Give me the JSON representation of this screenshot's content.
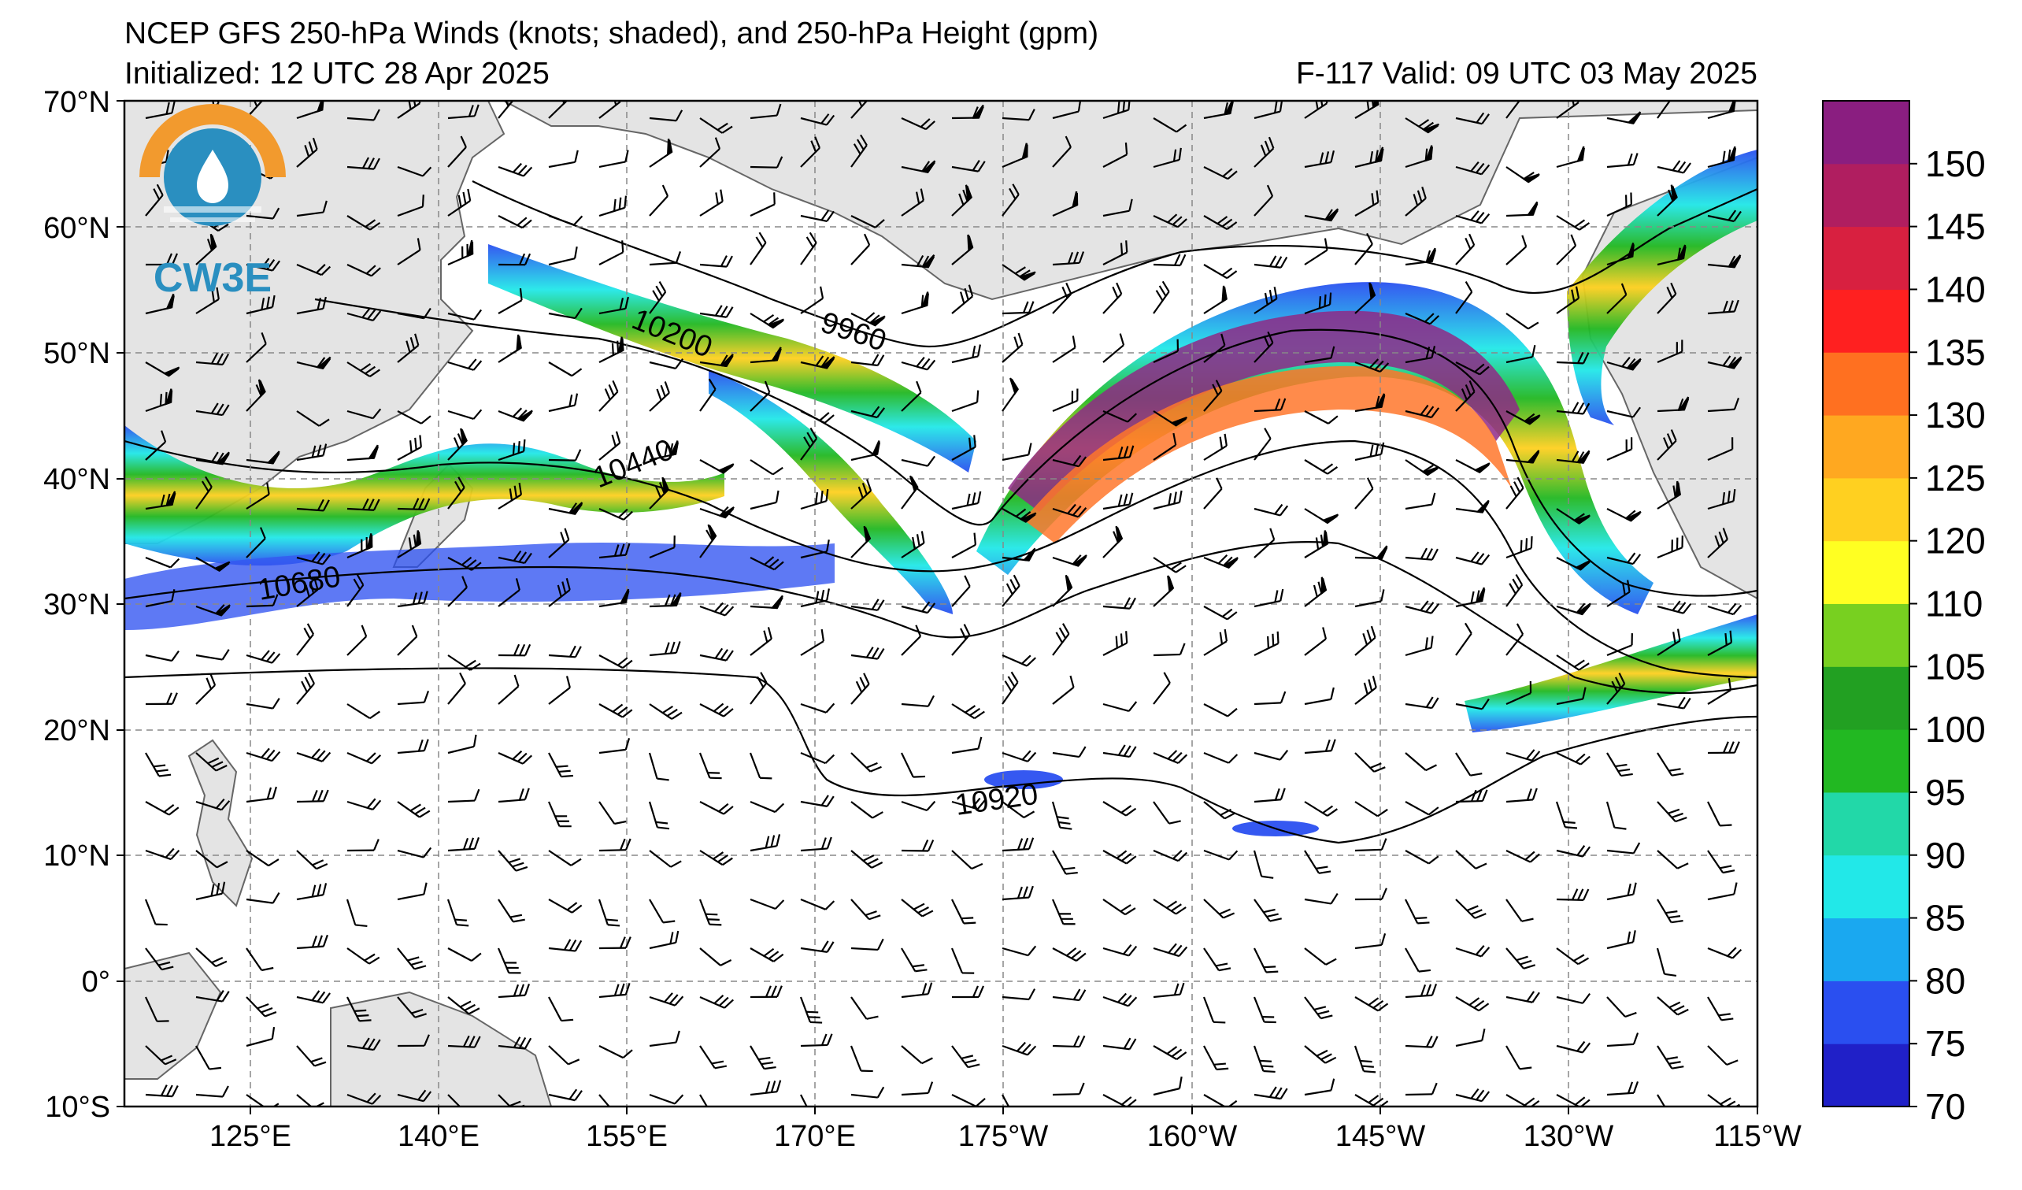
{
  "header": {
    "title": "NCEP GFS 250-hPa Winds (knots; shaded), and 250-hPa Height (gpm)",
    "initialized": "Initialized: 12 UTC 28 Apr 2025",
    "valid": "F-117  Valid: 09 UTC 03 May 2025"
  },
  "logo": {
    "text": "CW3E",
    "colors": {
      "orange": "#f29a2e",
      "blue": "#2a8fc0"
    }
  },
  "axes": {
    "lat_labels": [
      "70°N",
      "60°N",
      "50°N",
      "40°N",
      "30°N",
      "20°N",
      "10°N",
      "0°",
      "10°S"
    ],
    "lon_labels": [
      "125°E",
      "140°E",
      "155°E",
      "170°E",
      "175°W",
      "160°W",
      "145°W",
      "130°W",
      "115°W"
    ]
  },
  "contours": {
    "labels": [
      "9960",
      "10200",
      "10440",
      "10680",
      "10920"
    ]
  },
  "colorbar": {
    "labels": [
      "70",
      "75",
      "80",
      "85",
      "90",
      "95",
      "100",
      "105",
      "110",
      "120",
      "125",
      "130",
      "135",
      "140",
      "145",
      "150"
    ],
    "colors": [
      "#2020c8",
      "#2a4ff0",
      "#1aa8f0",
      "#22e8e8",
      "#22d8a8",
      "#22b822",
      "#22a022",
      "#78d020",
      "#ffff22",
      "#ffd020",
      "#ffa820",
      "#ff7020",
      "#ff2020",
      "#d82040",
      "#b01e60",
      "#8a1e80"
    ]
  }
}
